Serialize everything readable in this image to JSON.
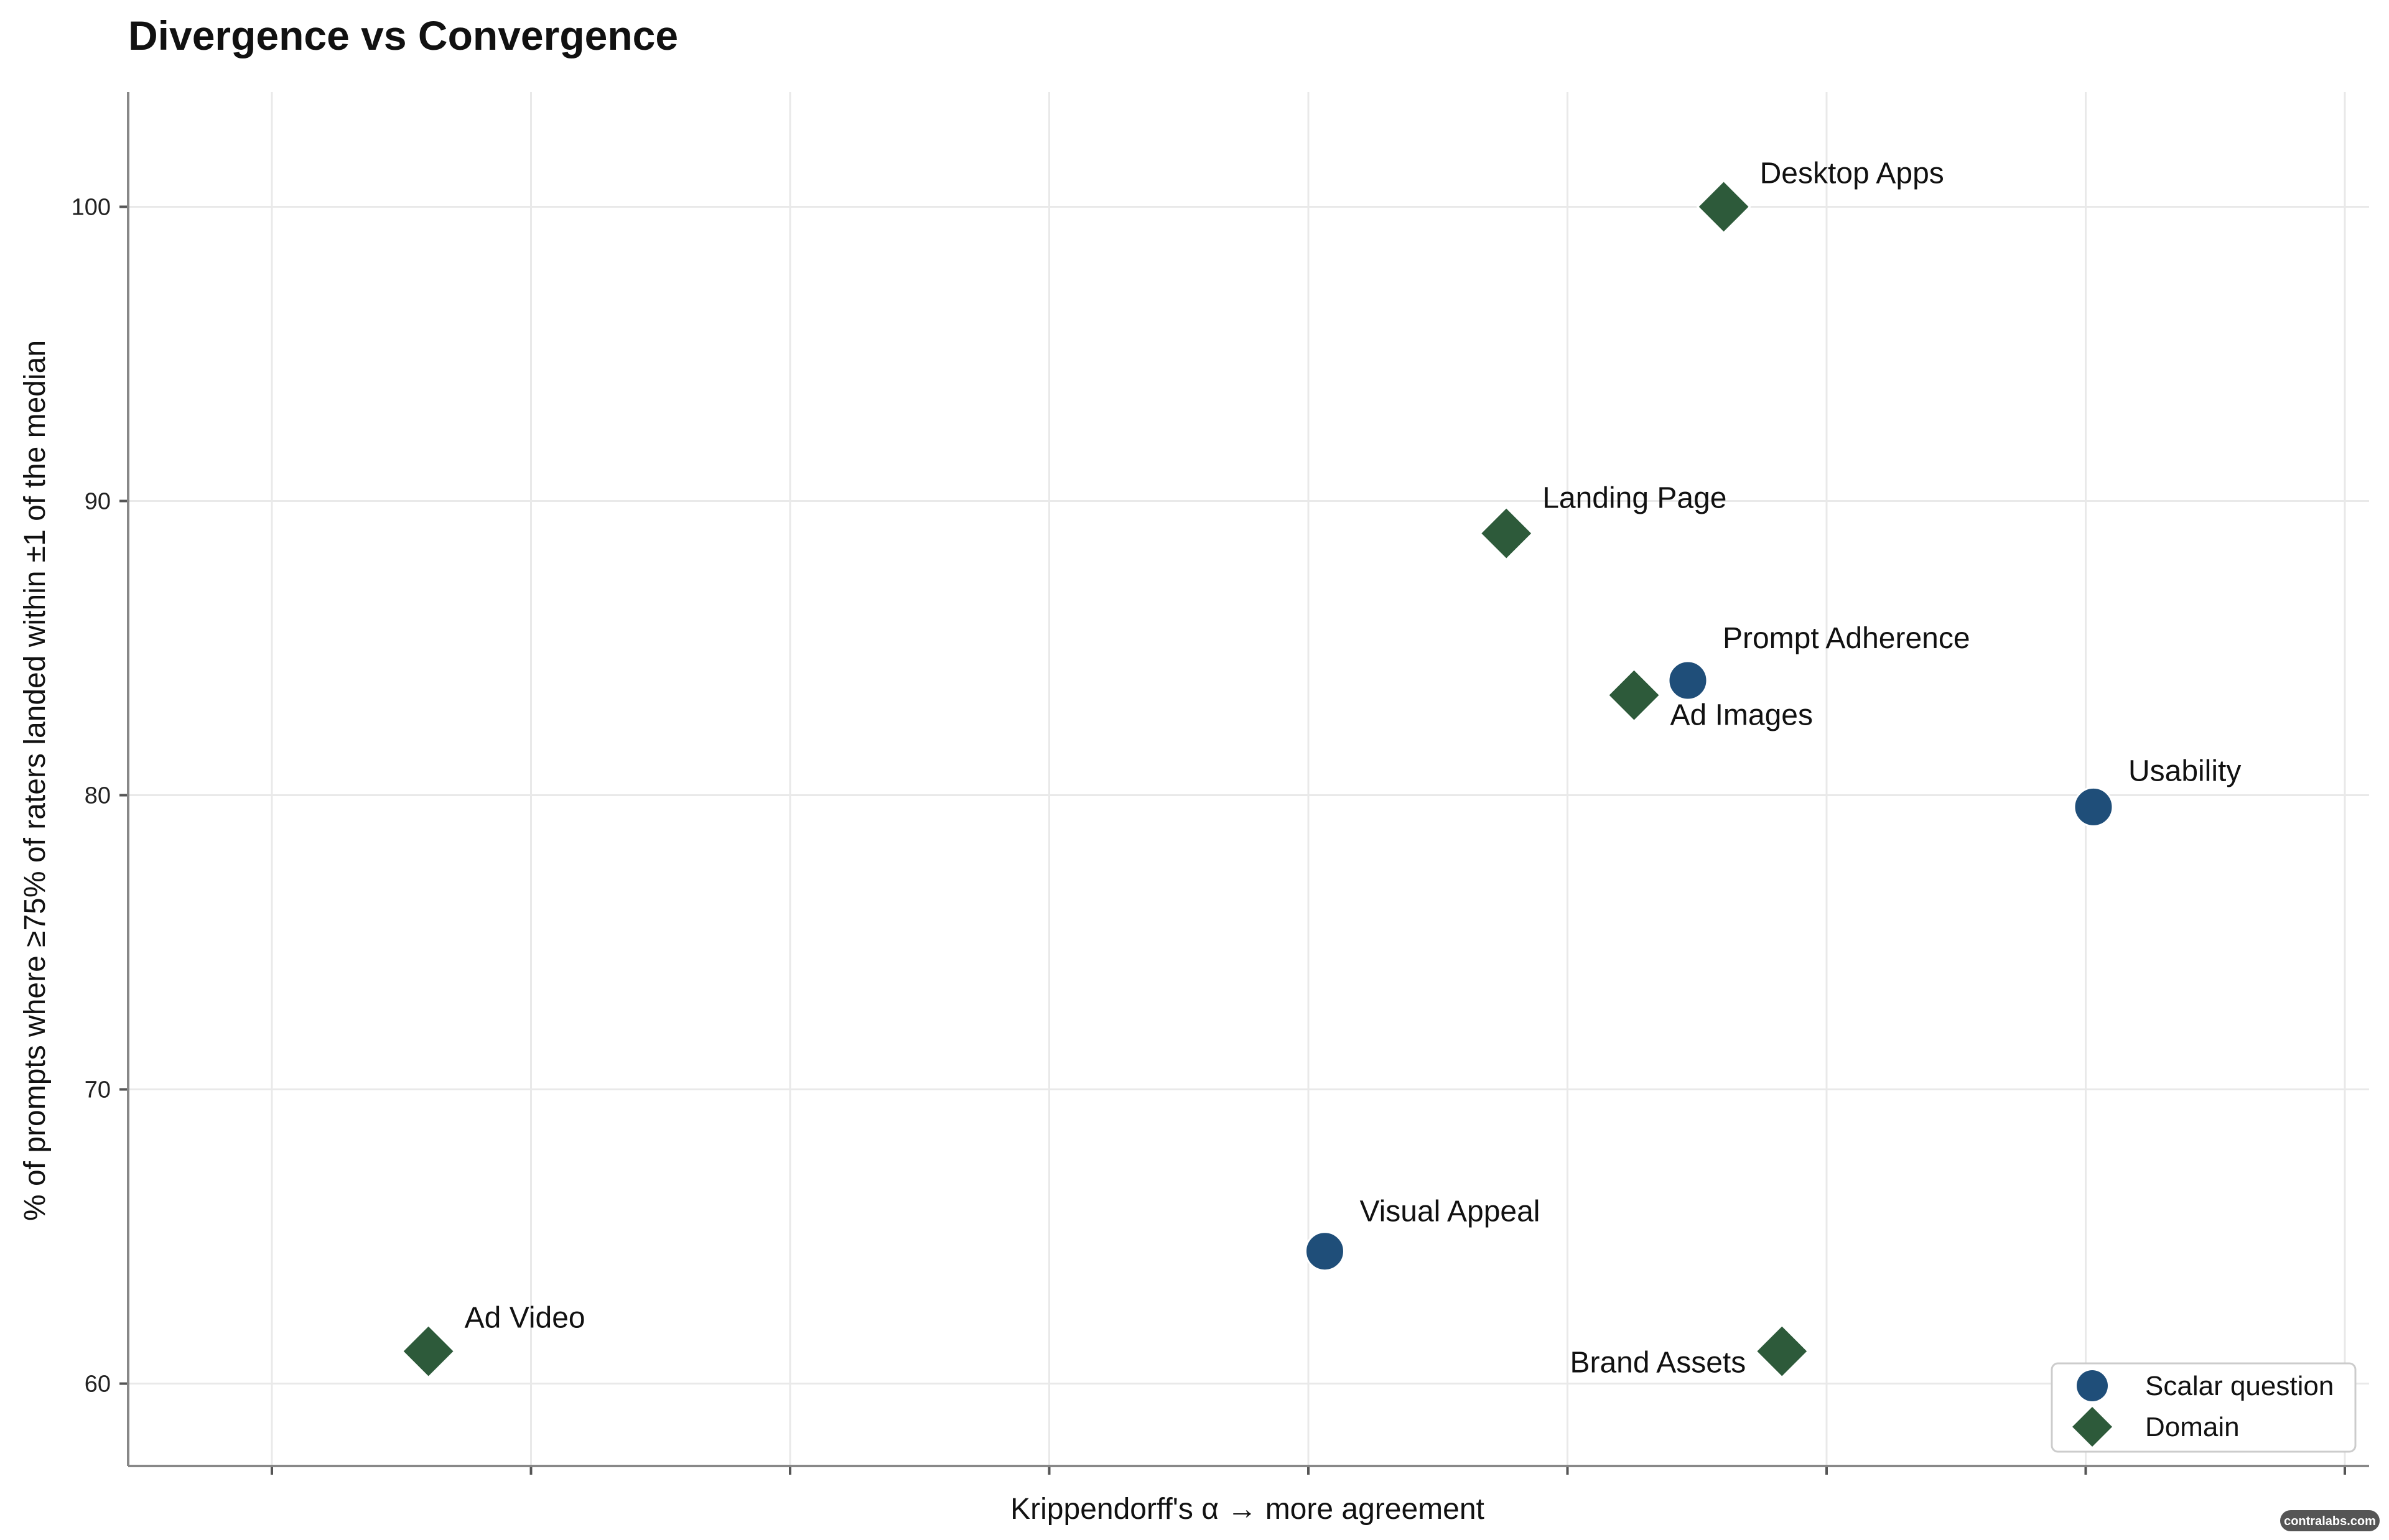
{
  "chart_data": {
    "type": "scatter",
    "title": "Divergence vs Convergence",
    "xlabel": "Krippendorff's α  →  more agreement",
    "ylabel": "% of prompts where ≥75% of raters landed within ±1 of the median",
    "xlim": [
      0,
      100
    ],
    "ylim": [
      57.2,
      103.9
    ],
    "y_ticks": [
      60,
      70,
      80,
      90,
      100
    ],
    "x_tick_count": 9,
    "grid": true,
    "legend_position": "bottom-right",
    "colors": {
      "scalar": "#1f4e79",
      "domain": "#2d5a3a"
    },
    "series": [
      {
        "name": "Scalar question",
        "marker": "circle",
        "points": [
          {
            "label": "Prompt Adherence",
            "x": 69.6,
            "y": 83.9
          },
          {
            "label": "Usability",
            "x": 87.7,
            "y": 79.6
          },
          {
            "label": "Visual Appeal",
            "x": 53.4,
            "y": 64.5
          }
        ]
      },
      {
        "name": "Domain",
        "marker": "diamond",
        "points": [
          {
            "label": "Desktop Apps",
            "x": 71.2,
            "y": 100.0
          },
          {
            "label": "Landing Page",
            "x": 61.5,
            "y": 88.9
          },
          {
            "label": "Ad Images",
            "x": 67.2,
            "y": 83.4
          },
          {
            "label": "Brand Assets",
            "x": 73.8,
            "y": 61.1
          },
          {
            "label": "Ad Video",
            "x": 13.4,
            "y": 61.1
          }
        ]
      }
    ]
  },
  "watermark": "contralabs.com"
}
